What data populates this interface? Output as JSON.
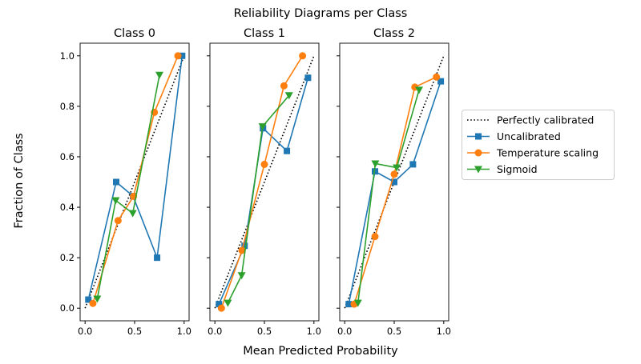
{
  "chart_data": [
    {
      "type": "line",
      "title": "Class 0",
      "xlim": [
        -0.05,
        1.05
      ],
      "ylim": [
        -0.05,
        1.05
      ],
      "xticks": [
        "0.0",
        "0.5",
        "1.0"
      ],
      "yticks": [
        "0.0",
        "0.2",
        "0.4",
        "0.6",
        "0.8",
        "1.0"
      ],
      "series": [
        {
          "name": "Uncalibrated",
          "x": [
            0.033,
            0.314,
            0.484,
            0.727,
            0.98
          ],
          "y": [
            0.034,
            0.5,
            0.444,
            0.2,
            1.0
          ]
        },
        {
          "name": "Temperature scaling",
          "x": [
            0.079,
            0.333,
            0.489,
            0.7,
            0.937
          ],
          "y": [
            0.019,
            0.347,
            0.443,
            0.776,
            1.0
          ]
        },
        {
          "name": "Sigmoid",
          "x": [
            0.123,
            0.309,
            0.481,
            0.751
          ],
          "y": [
            0.037,
            0.427,
            0.376,
            0.924
          ]
        }
      ]
    },
    {
      "type": "line",
      "title": "Class 1",
      "xlim": [
        -0.05,
        1.05
      ],
      "ylim": [
        -0.05,
        1.05
      ],
      "xticks": [
        "0.0",
        "0.5",
        "1.0"
      ],
      "series": [
        {
          "name": "Uncalibrated",
          "x": [
            0.041,
            0.3,
            0.486,
            0.727,
            0.94
          ],
          "y": [
            0.016,
            0.247,
            0.713,
            0.623,
            0.913
          ]
        },
        {
          "name": "Temperature scaling",
          "x": [
            0.066,
            0.273,
            0.5,
            0.697,
            0.885
          ],
          "y": [
            0.0,
            0.229,
            0.57,
            0.881,
            1.0
          ]
        },
        {
          "name": "Sigmoid",
          "x": [
            0.131,
            0.27,
            0.481,
            0.749
          ],
          "y": [
            0.021,
            0.13,
            0.72,
            0.843
          ]
        }
      ]
    },
    {
      "type": "line",
      "title": "Class 2",
      "xlim": [
        -0.05,
        1.05
      ],
      "ylim": [
        -0.05,
        1.05
      ],
      "xticks": [
        "0.0",
        "0.5",
        "1.0"
      ],
      "series": [
        {
          "name": "Uncalibrated",
          "x": [
            0.041,
            0.306,
            0.5,
            0.689,
            0.97
          ],
          "y": [
            0.016,
            0.542,
            0.5,
            0.57,
            0.899
          ]
        },
        {
          "name": "Temperature scaling",
          "x": [
            0.096,
            0.306,
            0.5,
            0.708,
            0.926
          ],
          "y": [
            0.016,
            0.284,
            0.531,
            0.876,
            0.916
          ]
        },
        {
          "name": "Sigmoid",
          "x": [
            0.134,
            0.309,
            0.525,
            0.751
          ],
          "y": [
            0.021,
            0.573,
            0.557,
            0.865
          ]
        }
      ]
    }
  ],
  "suptitle": "Reliability Diagrams per Class",
  "xlabel": "Mean Predicted Probability",
  "ylabel": "Fraction of Class",
  "legend": {
    "placement": "right",
    "entries": [
      {
        "label": "Perfectly calibrated",
        "color": "#000000",
        "style": "dotted",
        "marker": "none"
      },
      {
        "label": "Uncalibrated",
        "color": "#1f77b4",
        "style": "solid",
        "marker": "square"
      },
      {
        "label": "Temperature scaling",
        "color": "#ff7f0e",
        "style": "solid",
        "marker": "circle"
      },
      {
        "label": "Sigmoid",
        "color": "#2ca02c",
        "style": "solid",
        "marker": "triangle-down"
      }
    ]
  }
}
